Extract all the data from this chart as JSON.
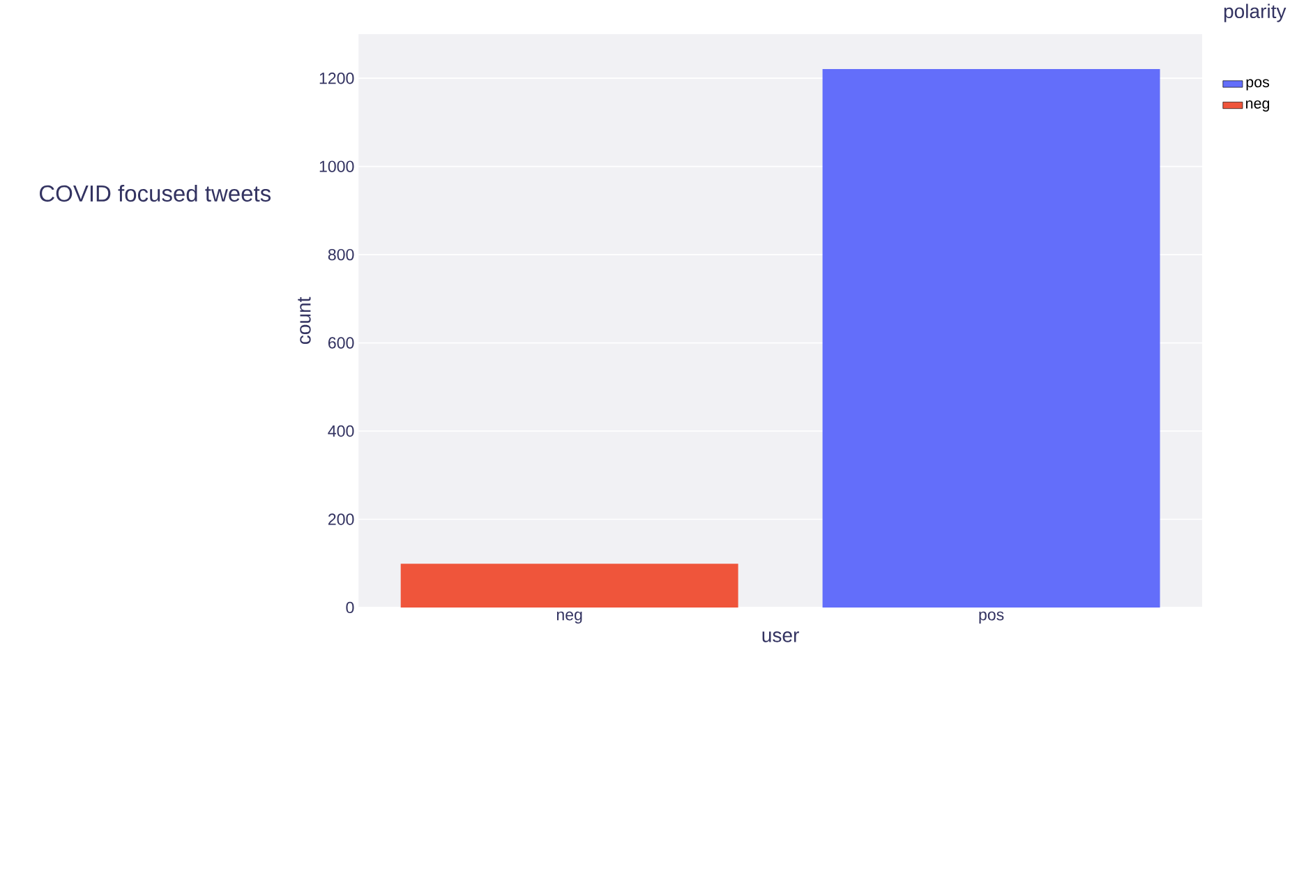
{
  "chart_data": {
    "type": "bar",
    "title": "COVID focused tweets",
    "xlabel": "user",
    "ylabel": "count",
    "legend_title": "polarity",
    "categories": [
      "neg",
      "pos"
    ],
    "series": [
      {
        "name": "pos",
        "color": "#636efa",
        "values": [
          null,
          1221
        ]
      },
      {
        "name": "neg",
        "color": "#ef553b",
        "values": [
          99,
          null
        ]
      }
    ],
    "ylim": [
      0,
      1300
    ],
    "yticks": [
      0,
      200,
      400,
      600,
      800,
      1000,
      1200
    ],
    "grid": "y",
    "legend": "right"
  }
}
